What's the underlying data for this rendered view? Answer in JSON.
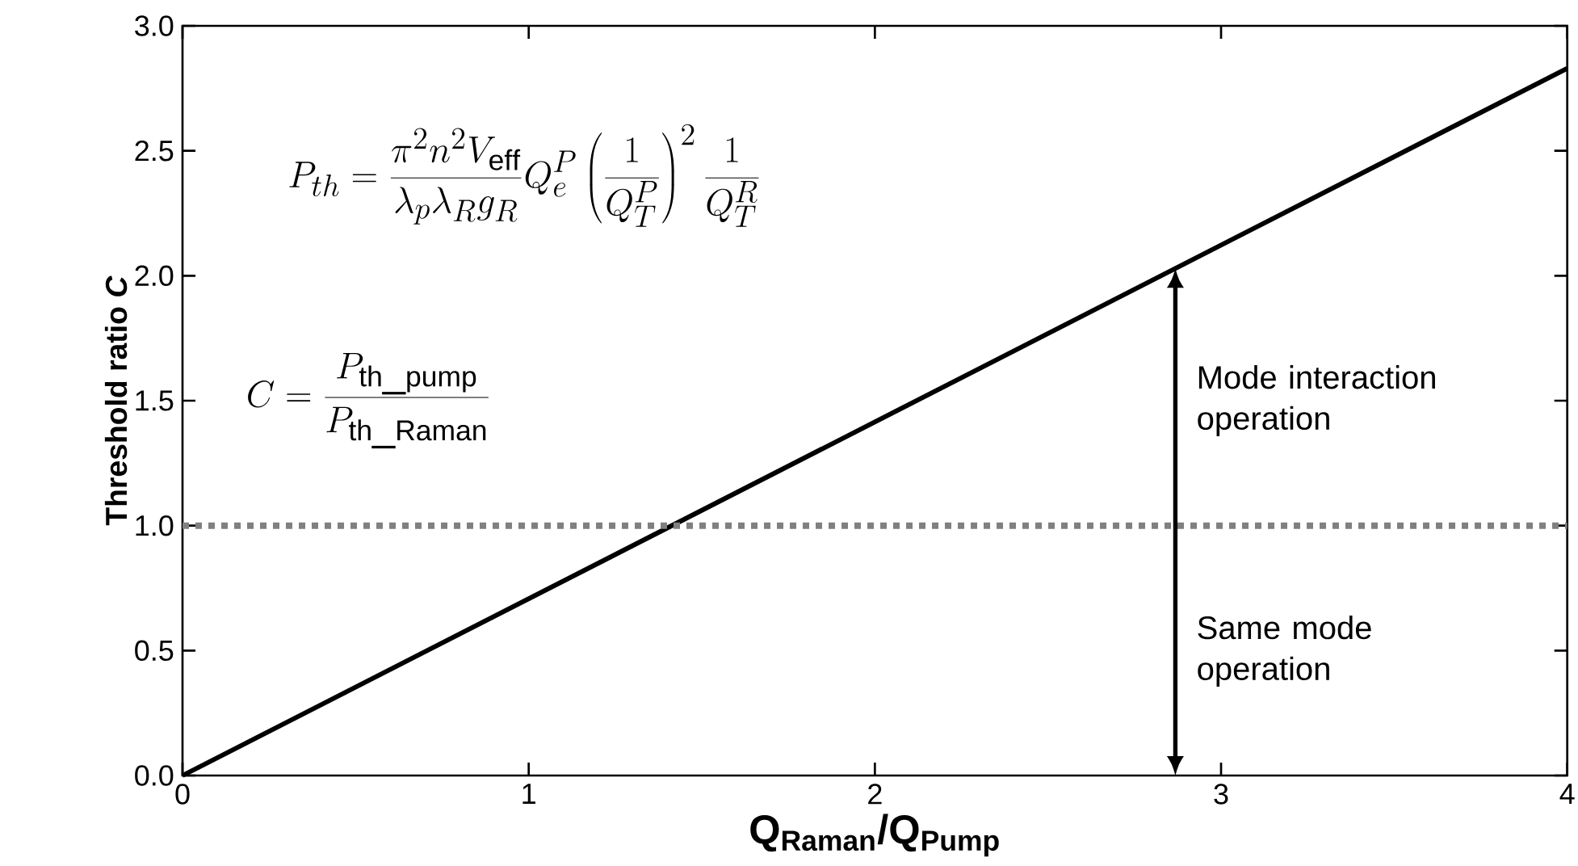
{
  "chart_data": {
    "type": "line",
    "xlabel": "Q$_{Raman}$/Q$_{Pump}$",
    "ylabel": "Threshold ratio *C*",
    "x": [
      0,
      4
    ],
    "series": [
      {
        "color": "#000000",
        "values": [
          0,
          2.83
        ]
      }
    ],
    "xlim": [
      0,
      4
    ],
    "ylim": [
      0,
      3
    ],
    "xticks": [
      0,
      1,
      2,
      3,
      4
    ],
    "yticks": [
      {
        "value": 0,
        "label": "0.0"
      },
      0.5,
      {
        "value": 1,
        "label": "1.0"
      },
      1.5,
      {
        "value": 2,
        "label": "2.0"
      },
      2.5,
      {
        "value": 3,
        "label": "3.0"
      }
    ],
    "ref_lines": [
      {
        "axis": "y",
        "value": 1,
        "color": "#808080",
        "line_style": "dotted"
      }
    ],
    "annotations": [
      "P_{th} = \\frac{\\pi^2 n^2 V_{\\mathrm{eff}}}{\\lambda_p \\lambda_R g_R} Q_e^P \\left(\\frac{1}{Q_T^P}\\right)^2 \\frac{1}{Q_T^R}",
      "C = \\frac{P_{\\mathrm{th\\_pump}}}{P_{\\mathrm{th\\_Raman}}}",
      "Mode interaction operation",
      "Same mode operation"
    ],
    "grid": false,
    "marker": "none",
    "line_style": "solid"
  }
}
